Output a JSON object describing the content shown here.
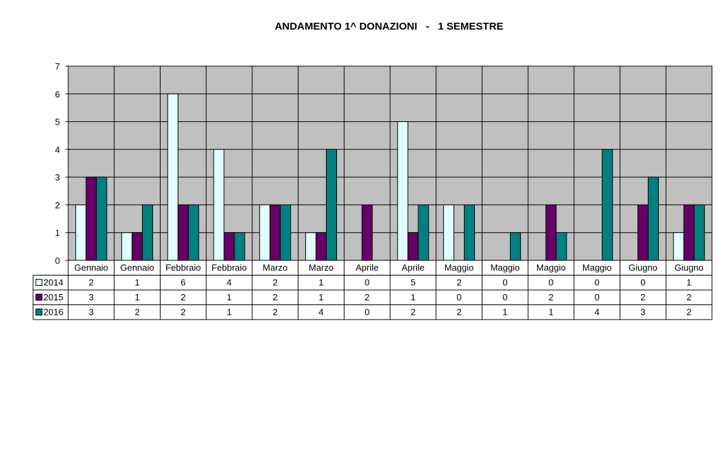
{
  "chart_data": {
    "type": "bar",
    "title": "ANDAMENTO 1^ DONAZIONI   -   1 SEMESTRE",
    "categories": [
      "Gennaio",
      "Gennaio",
      "Febbraio",
      "Febbraio",
      "Marzo",
      "Marzo",
      "Aprile",
      "Aprile",
      "Maggio",
      "Maggio",
      "Maggio",
      "Maggio",
      "Giugno",
      "Giugno"
    ],
    "series": [
      {
        "name": "2014",
        "values": [
          2,
          1,
          6,
          4,
          2,
          1,
          0,
          5,
          2,
          0,
          0,
          0,
          0,
          1
        ],
        "color": "#e0ffff"
      },
      {
        "name": "2015",
        "values": [
          3,
          1,
          2,
          1,
          2,
          1,
          2,
          1,
          0,
          0,
          2,
          0,
          2,
          2
        ],
        "color": "#660066"
      },
      {
        "name": "2016",
        "values": [
          3,
          2,
          2,
          1,
          2,
          4,
          0,
          2,
          2,
          1,
          1,
          4,
          3,
          2
        ],
        "color": "#008080"
      }
    ],
    "yticks": [
      "0",
      "1",
      "2",
      "3",
      "4",
      "5",
      "6",
      "7"
    ],
    "ylim": [
      0,
      7
    ],
    "grid": true,
    "plot_background": "#c0c0c0",
    "legend": "data-table",
    "data_table": true
  }
}
